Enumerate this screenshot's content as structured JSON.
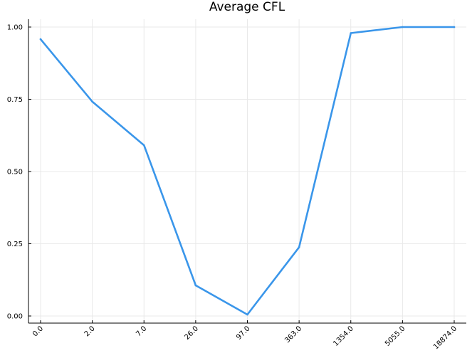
{
  "chart_data": {
    "type": "line",
    "title": "Average CFL",
    "xlabel": "",
    "ylabel": "",
    "categories": [
      "0.0",
      "2.0",
      "7.0",
      "26.0",
      "97.0",
      "363.0",
      "1354.0",
      "5055.0",
      "18874.0"
    ],
    "series": [
      {
        "values": [
          0.958,
          0.742,
          0.591,
          0.106,
          0.005,
          0.238,
          0.979,
          1.0,
          1.0
        ],
        "color": "#3a96ea"
      }
    ],
    "ylim": [
      0.0,
      1.0
    ],
    "yticks": [
      "0.00",
      "0.25",
      "0.50",
      "0.75",
      "1.00"
    ],
    "ytick_values": [
      0.0,
      0.25,
      0.5,
      0.75,
      1.0
    ],
    "grid": true,
    "legend": "none"
  }
}
